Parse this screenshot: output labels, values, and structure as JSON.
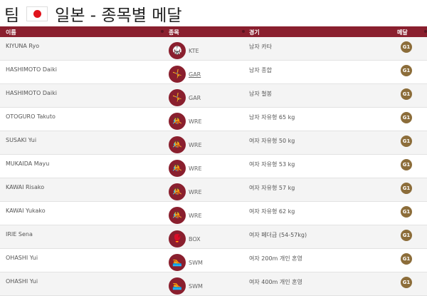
{
  "page": {
    "title_prefix": "팀",
    "title": "일본 - 종목별 메달",
    "flag": "japan-flag"
  },
  "table": {
    "headers": {
      "name": "이름",
      "sport": "종목",
      "event": "경기",
      "medal": "메달"
    },
    "colors": {
      "header": "#8a1f2e",
      "gold_medal": "#8c6d3a"
    },
    "rows": [
      {
        "name": "KIYUNA Ryo",
        "sport": "KTE",
        "sport_icon": "karate-icon",
        "event": "남자 카타",
        "medal": "gold"
      },
      {
        "name": "HASHIMOTO Daiki",
        "sport": "GAR",
        "sport_icon": "gymnastics-icon",
        "event": "남자 종합",
        "medal": "gold"
      },
      {
        "name": "HASHIMOTO Daiki",
        "sport": "GAR",
        "sport_icon": "gymnastics-icon",
        "event": "남자 철봉",
        "medal": "gold"
      },
      {
        "name": "OTOGURO Takuto",
        "sport": "WRE",
        "sport_icon": "wrestling-icon",
        "event": "남자 자유형 65 kg",
        "medal": "gold"
      },
      {
        "name": "SUSAKI Yui",
        "sport": "WRE",
        "sport_icon": "wrestling-icon",
        "event": "여자 자유형 50 kg",
        "medal": "gold"
      },
      {
        "name": "MUKAIDA Mayu",
        "sport": "WRE",
        "sport_icon": "wrestling-icon",
        "event": "여자 자유형 53 kg",
        "medal": "gold"
      },
      {
        "name": "KAWAI Risako",
        "sport": "WRE",
        "sport_icon": "wrestling-icon",
        "event": "여자 자유형 57 kg",
        "medal": "gold"
      },
      {
        "name": "KAWAI Yukako",
        "sport": "WRE",
        "sport_icon": "wrestling-icon",
        "event": "여자 자유형 62 kg",
        "medal": "gold"
      },
      {
        "name": "IRIE Sena",
        "sport": "BOX",
        "sport_icon": "boxing-icon",
        "event": "여자 페더급 (54-57kg)",
        "medal": "gold"
      },
      {
        "name": "OHASHI Yui",
        "sport": "SWM",
        "sport_icon": "swimming-icon",
        "event": "여자 200m 개인 혼영",
        "medal": "gold"
      },
      {
        "name": "OHASHI Yui",
        "sport": "SWM",
        "sport_icon": "swimming-icon",
        "event": "여자 400m 개인 혼영",
        "medal": "gold"
      }
    ]
  }
}
